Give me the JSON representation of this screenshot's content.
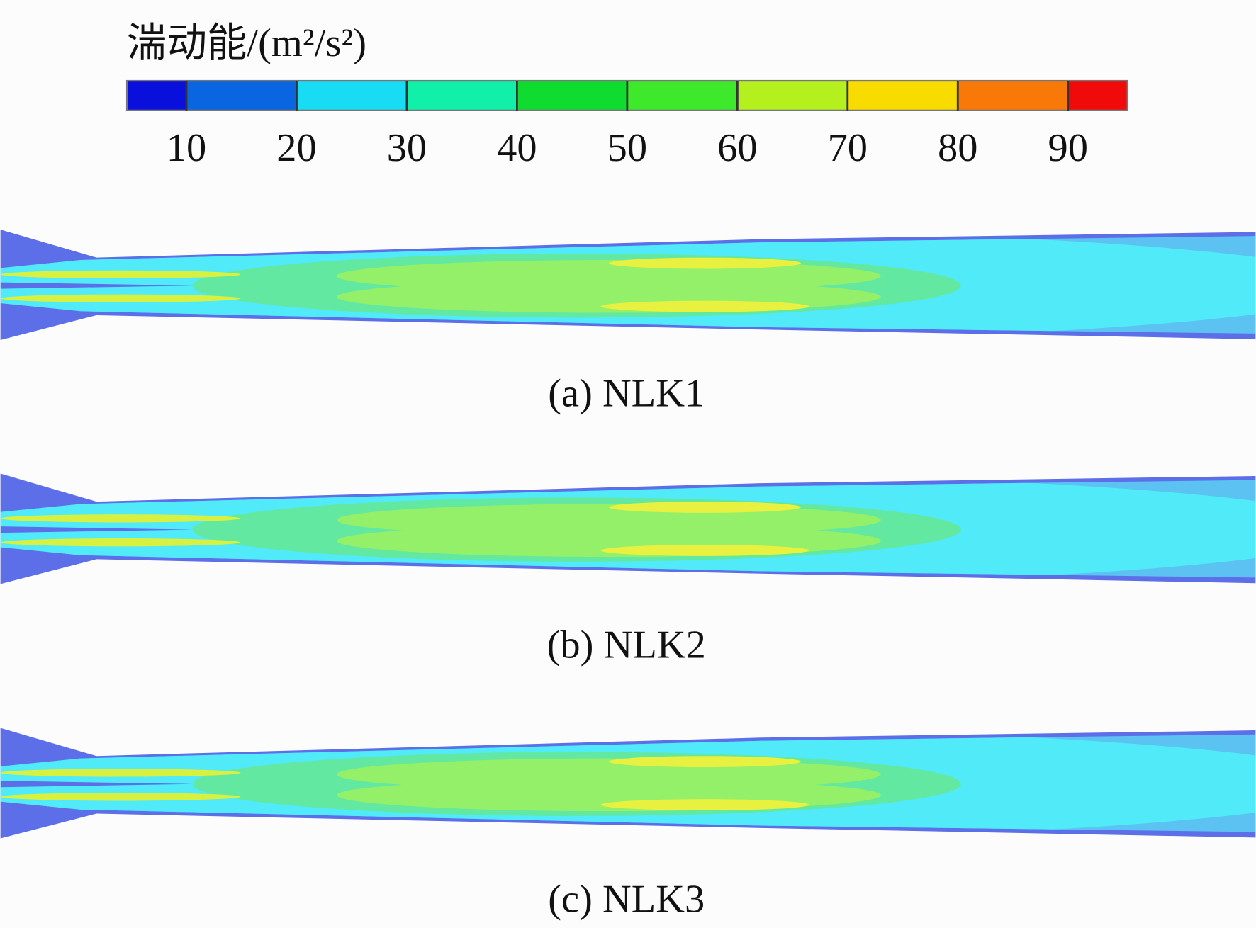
{
  "colorbar": {
    "title": "湍动能/(m²/s²)",
    "lim": [
      4.6,
      95.4
    ],
    "ticks": [
      10,
      20,
      30,
      40,
      50,
      60,
      70,
      80,
      90
    ],
    "colors": [
      "#0a10dc",
      "#0a66e0",
      "#18dcf4",
      "#10f0a8",
      "#10dc30",
      "#3ee82a",
      "#b4f01e",
      "#f8dc00",
      "#f87808",
      "#f00a0a"
    ]
  },
  "panels": [
    {
      "caption": "(a) NLK1"
    },
    {
      "caption": "(b) NLK2"
    },
    {
      "caption": "(c) NLK3"
    }
  ]
}
